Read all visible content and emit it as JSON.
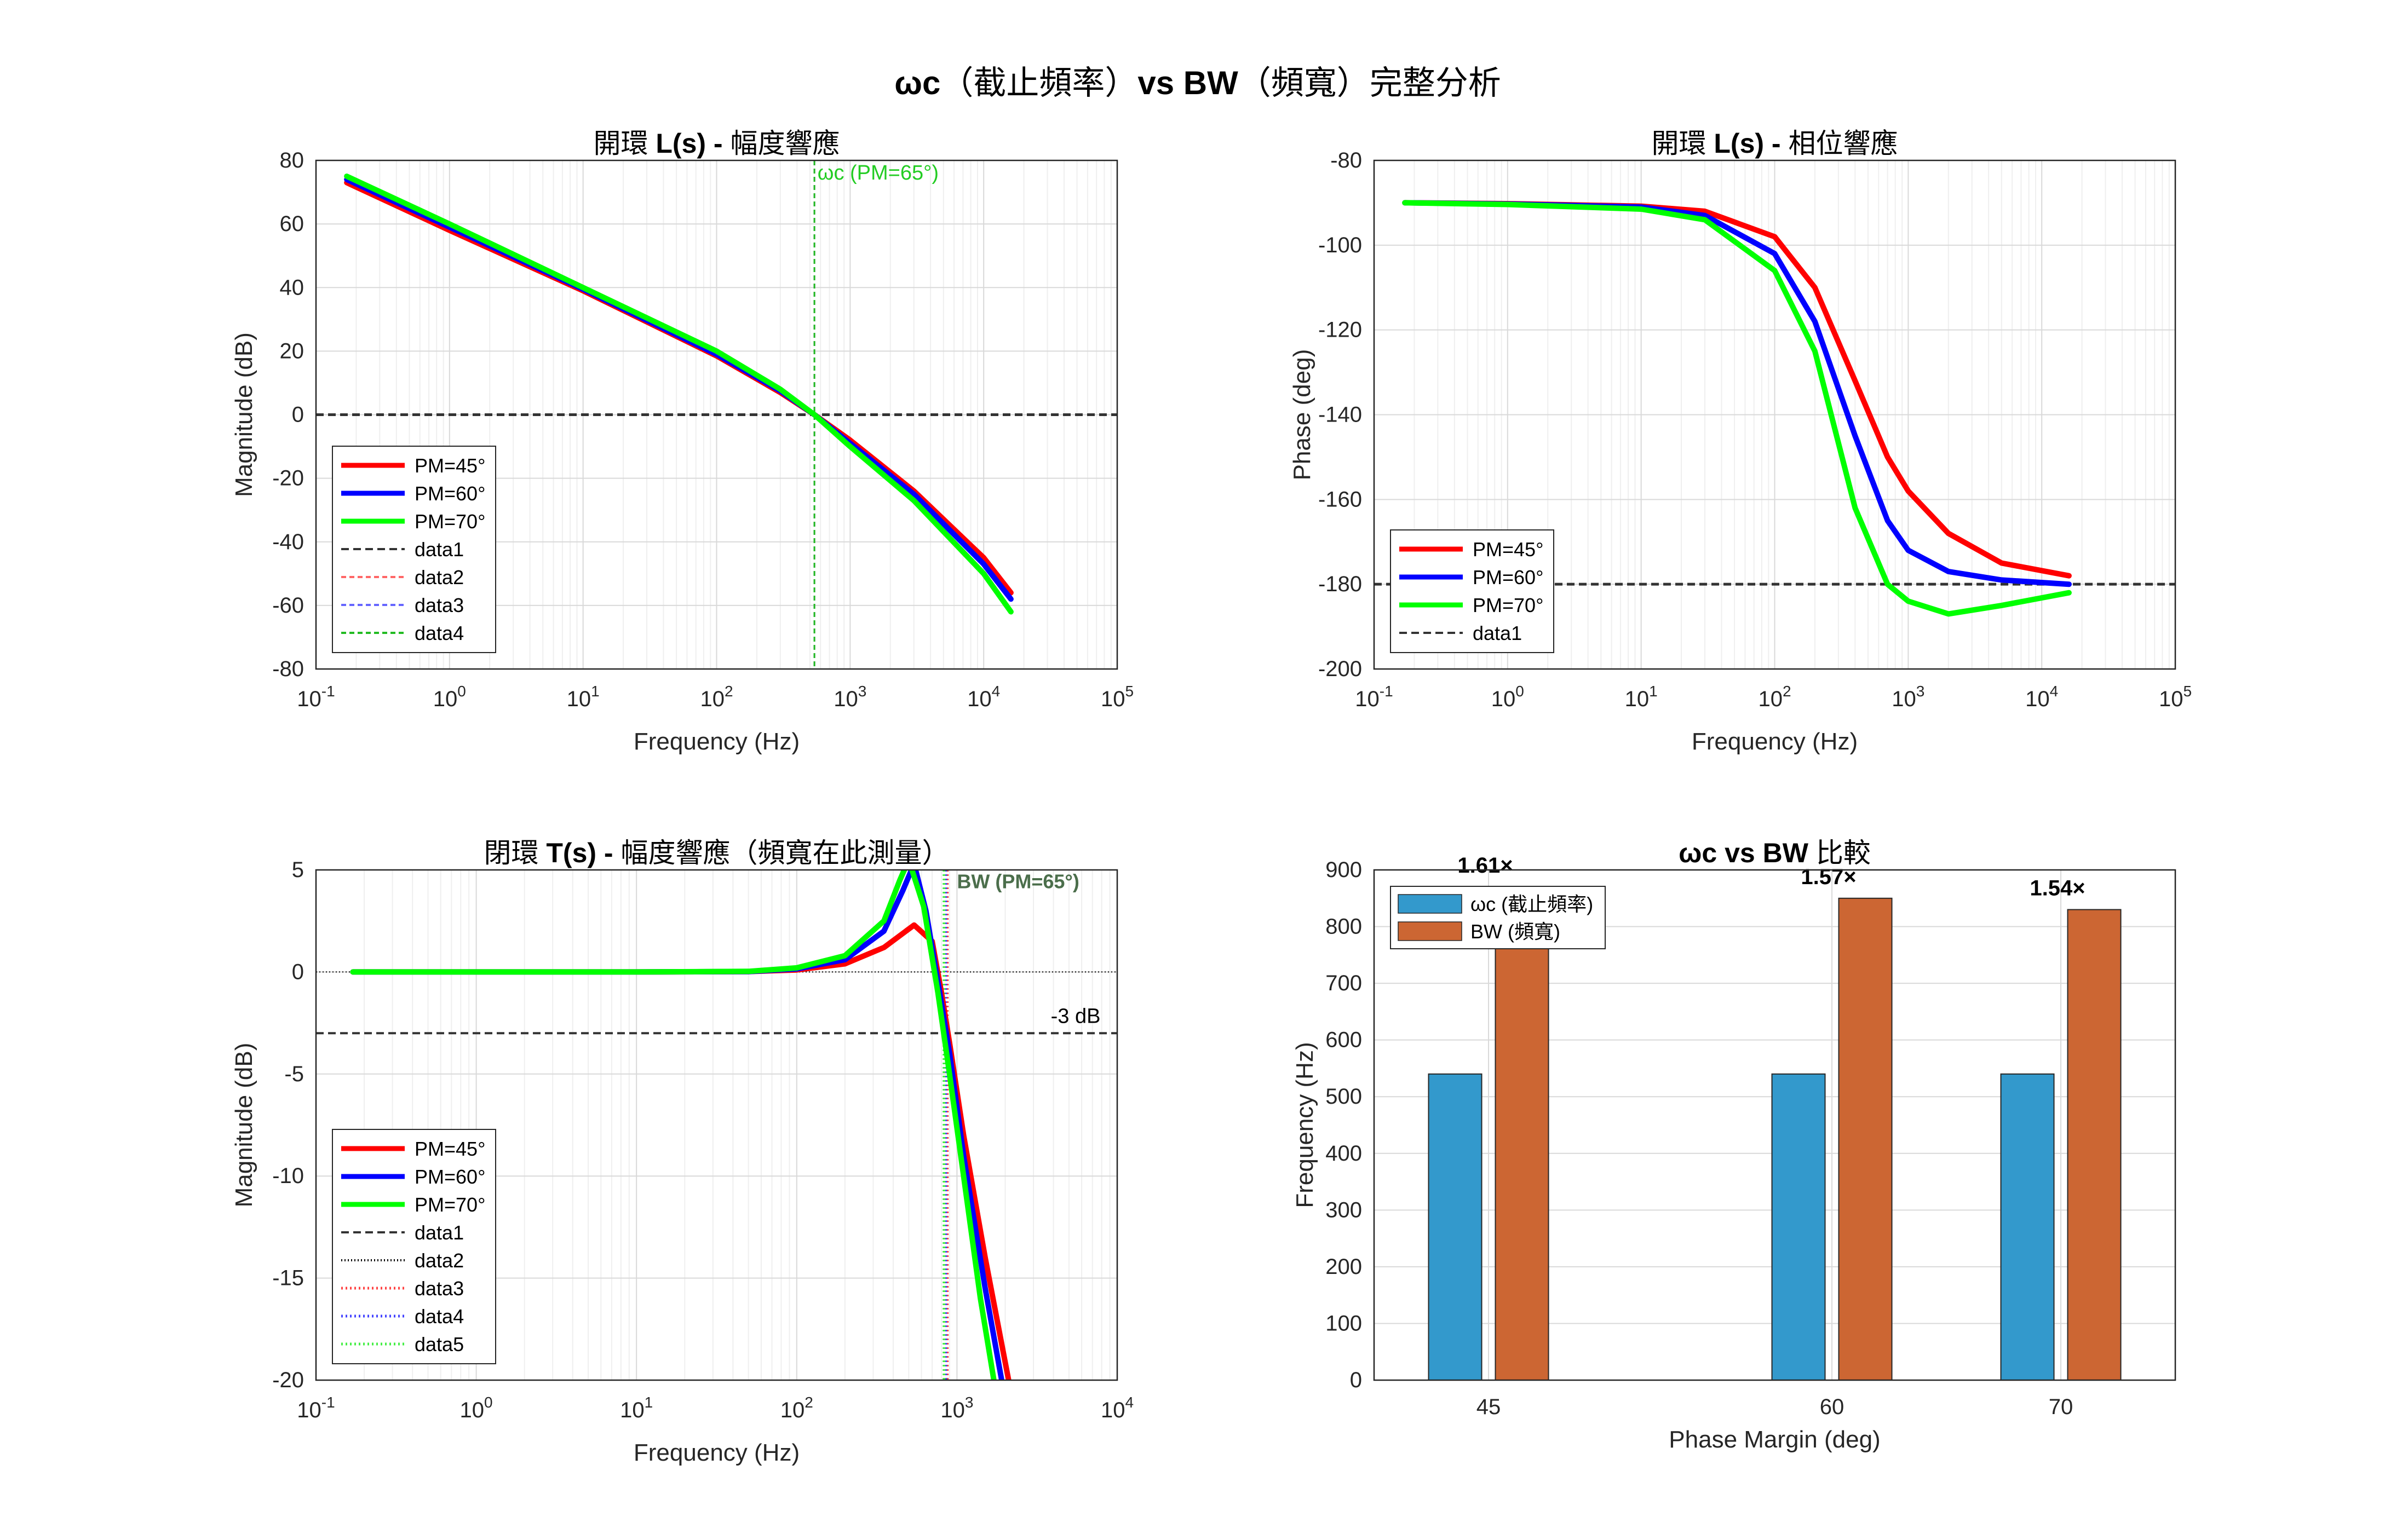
{
  "figure": {
    "suptitle_html": "<b>ωc</b>（截止頻率）<b>vs BW</b>（頻寬）完整分析"
  },
  "chart_data": [
    {
      "id": "loop-mag",
      "type": "line",
      "title": "開環 L(s) - 幅度響應",
      "title_html": "開環 <b>L(s) -</b> 幅度響應",
      "xlabel": "Frequency (Hz)",
      "ylabel": "Magnitude (dB)",
      "xscale": "log",
      "xlim": [
        0.1,
        100000
      ],
      "ylim": [
        -80,
        80
      ],
      "yticks": [
        -80,
        -60,
        -40,
        -20,
        0,
        20,
        40,
        60,
        80
      ],
      "xticks": [
        0.1,
        1,
        10,
        100,
        1000,
        10000,
        100000
      ],
      "grid": true,
      "legend_position": "bottom-left",
      "legend": [
        "PM=45°",
        "PM=60°",
        "PM=70°",
        "data1",
        "data2",
        "data3",
        "data4"
      ],
      "series": [
        {
          "name": "PM=45°",
          "color": "#ff0000",
          "points": [
            [
              0.17,
              73
            ],
            [
              1,
              58
            ],
            [
              10,
              39
            ],
            [
              100,
              18.5
            ],
            [
              300,
              7
            ],
            [
              540,
              0
            ],
            [
              1000,
              -8
            ],
            [
              3000,
              -24
            ],
            [
              10000,
              -45
            ],
            [
              16000,
              -56
            ]
          ]
        },
        {
          "name": "PM=60°",
          "color": "#0000ff",
          "points": [
            [
              0.17,
              74
            ],
            [
              1,
              59
            ],
            [
              10,
              39.5
            ],
            [
              100,
              19
            ],
            [
              300,
              7.5
            ],
            [
              540,
              0
            ],
            [
              1000,
              -9
            ],
            [
              3000,
              -25
            ],
            [
              10000,
              -47
            ],
            [
              16000,
              -58
            ]
          ]
        },
        {
          "name": "PM=70°",
          "color": "#00ff00",
          "points": [
            [
              0.17,
              75
            ],
            [
              1,
              60
            ],
            [
              10,
              40
            ],
            [
              100,
              20
            ],
            [
              300,
              8
            ],
            [
              540,
              0
            ],
            [
              1000,
              -10
            ],
            [
              3000,
              -27
            ],
            [
              10000,
              -50
            ],
            [
              16000,
              -62
            ]
          ]
        }
      ],
      "hlines": [
        {
          "name": "data1",
          "y": 0,
          "color": "#333333",
          "dash": "14,8"
        }
      ],
      "vlines": [
        {
          "name": "data2",
          "x": 540,
          "color": "#ff6666",
          "dash": "9,6"
        },
        {
          "name": "data3",
          "x": 540,
          "color": "#6666ff",
          "dash": "9,6"
        },
        {
          "name": "data4",
          "x": 540,
          "color": "#22bb22",
          "dash": "9,6"
        }
      ],
      "annotations": [
        {
          "text": "ωc (PM=65°)",
          "x": 570,
          "y": 74,
          "color": "#22cc22",
          "size": 38
        }
      ]
    },
    {
      "id": "loop-phase",
      "type": "line",
      "title": "開環 L(s) - 相位響應",
      "title_html": "開環 <b>L(s) -</b> 相位響應",
      "xlabel": "Frequency (Hz)",
      "ylabel": "Phase (deg)",
      "xscale": "log",
      "xlim": [
        0.1,
        100000
      ],
      "ylim": [
        -200,
        -80
      ],
      "yticks": [
        -200,
        -180,
        -160,
        -140,
        -120,
        -100,
        -80
      ],
      "xticks": [
        0.1,
        1,
        10,
        100,
        1000,
        10000,
        100000
      ],
      "grid": true,
      "legend_position": "bottom-left",
      "legend": [
        "PM=45°",
        "PM=60°",
        "PM=70°",
        "data1"
      ],
      "series": [
        {
          "name": "PM=45°",
          "color": "#ff0000",
          "points": [
            [
              0.17,
              -90
            ],
            [
              1,
              -90.2
            ],
            [
              10,
              -90.8
            ],
            [
              30,
              -92
            ],
            [
              100,
              -98
            ],
            [
              200,
              -110
            ],
            [
              400,
              -132
            ],
            [
              700,
              -150
            ],
            [
              1000,
              -158
            ],
            [
              2000,
              -168
            ],
            [
              5000,
              -175
            ],
            [
              16000,
              -178
            ]
          ]
        },
        {
          "name": "PM=60°",
          "color": "#0000ff",
          "points": [
            [
              0.17,
              -90
            ],
            [
              1,
              -90.3
            ],
            [
              10,
              -91
            ],
            [
              30,
              -93
            ],
            [
              100,
              -102
            ],
            [
              200,
              -118
            ],
            [
              400,
              -145
            ],
            [
              700,
              -165
            ],
            [
              1000,
              -172
            ],
            [
              2000,
              -177
            ],
            [
              5000,
              -179
            ],
            [
              16000,
              -180
            ]
          ]
        },
        {
          "name": "PM=70°",
          "color": "#00ff00",
          "points": [
            [
              0.17,
              -90
            ],
            [
              1,
              -90.4
            ],
            [
              10,
              -91.5
            ],
            [
              30,
              -94
            ],
            [
              100,
              -106
            ],
            [
              200,
              -125
            ],
            [
              400,
              -162
            ],
            [
              700,
              -180
            ],
            [
              1000,
              -184
            ],
            [
              2000,
              -187
            ],
            [
              5000,
              -185
            ],
            [
              16000,
              -182
            ]
          ]
        }
      ],
      "hlines": [
        {
          "name": "data1",
          "y": -180,
          "color": "#333333",
          "dash": "14,8"
        }
      ],
      "vlines": [],
      "annotations": []
    },
    {
      "id": "closed-mag",
      "type": "line",
      "title": "閉環 T(s) - 幅度響應（頻寬在此測量）",
      "title_html": "閉環 <b>T(s) -</b> 幅度響應（頻寬在此測量）",
      "xlabel": "Frequency (Hz)",
      "ylabel": "Magnitude (dB)",
      "xscale": "log",
      "xlim": [
        0.1,
        10000
      ],
      "ylim": [
        -20,
        5
      ],
      "yticks": [
        -20,
        -15,
        -10,
        -5,
        0,
        5
      ],
      "xticks": [
        0.1,
        1,
        10,
        100,
        1000,
        10000
      ],
      "grid": true,
      "legend_position": "bottom-left",
      "legend": [
        "PM=45°",
        "PM=60°",
        "PM=70°",
        "data1",
        "data2",
        "data3",
        "data4",
        "data5"
      ],
      "series": [
        {
          "name": "PM=45°",
          "color": "#ff0000",
          "points": [
            [
              0.17,
              0
            ],
            [
              10,
              0
            ],
            [
              50,
              0.02
            ],
            [
              100,
              0.1
            ],
            [
              200,
              0.4
            ],
            [
              350,
              1.2
            ],
            [
              540,
              2.3
            ],
            [
              700,
              1.5
            ],
            [
              800,
              -1
            ],
            [
              900,
              -3.5
            ],
            [
              1100,
              -8
            ],
            [
              1500,
              -14
            ],
            [
              2100,
              -20
            ]
          ]
        },
        {
          "name": "PM=60°",
          "color": "#0000ff",
          "points": [
            [
              0.17,
              0
            ],
            [
              10,
              0
            ],
            [
              50,
              0.02
            ],
            [
              100,
              0.15
            ],
            [
              200,
              0.6
            ],
            [
              350,
              2
            ],
            [
              460,
              4
            ],
            [
              540,
              5.3
            ],
            [
              640,
              3
            ],
            [
              780,
              -1
            ],
            [
              900,
              -4
            ],
            [
              1100,
              -9
            ],
            [
              1500,
              -15.5
            ],
            [
              1900,
              -20
            ]
          ]
        },
        {
          "name": "PM=70°",
          "color": "#00ff00",
          "points": [
            [
              0.17,
              0
            ],
            [
              10,
              0
            ],
            [
              50,
              0.03
            ],
            [
              100,
              0.2
            ],
            [
              200,
              0.8
            ],
            [
              350,
              2.5
            ],
            [
              440,
              4.5
            ],
            [
              500,
              5.5
            ],
            [
              620,
              3.2
            ],
            [
              760,
              -1
            ],
            [
              880,
              -4.5
            ],
            [
              1100,
              -10
            ],
            [
              1400,
              -16
            ],
            [
              1700,
              -20
            ]
          ]
        }
      ],
      "hlines": [
        {
          "name": "data1",
          "y": -3,
          "color": "#333333",
          "dash": "14,8",
          "width": 4
        },
        {
          "name": "data2",
          "y": 0,
          "color": "#000000",
          "dash": "2,4",
          "width": 2
        }
      ],
      "vlines": [
        {
          "name": "data3",
          "x": 870,
          "color": "#ff4444",
          "dash": "3,5",
          "width": 5
        },
        {
          "name": "data4",
          "x": 850,
          "color": "#4444ff",
          "dash": "3,5",
          "width": 5
        },
        {
          "name": "data5",
          "x": 830,
          "color": "#44ee44",
          "dash": "3,5",
          "width": 5
        }
      ],
      "annotations": [
        {
          "text": "BW (PM=65°)",
          "x": 1000,
          "y": 4.1,
          "color": "#4b6e4b",
          "size": 36,
          "bold": true
        },
        {
          "text": "-3 dB",
          "x": 5500,
          "y": -2.5,
          "color": "#000000",
          "size": 38
        }
      ]
    },
    {
      "id": "wc-bw-compare",
      "type": "bar",
      "title": "ωc vs BW 比較",
      "title_html": "<b>ωc vs BW</b> 比較",
      "xlabel": "Phase Margin (deg)",
      "ylabel": "Frequency (Hz)",
      "categories": [
        "45",
        "60",
        "70"
      ],
      "x": [
        45,
        60,
        70
      ],
      "xlim": [
        40,
        75
      ],
      "ylim": [
        0,
        900
      ],
      "yticks": [
        0,
        100,
        200,
        300,
        400,
        500,
        600,
        700,
        800,
        900
      ],
      "grid": true,
      "legend_position": "top-left",
      "series": [
        {
          "name": "ωc (截止頻率)",
          "color": "#3399cc",
          "values": [
            540,
            540,
            540
          ]
        },
        {
          "name": "BW (頻寬)",
          "color": "#cc6633",
          "values": [
            870,
            850,
            830
          ]
        }
      ],
      "ratio_labels": [
        "1.61×",
        "1.57×",
        "1.54×"
      ]
    }
  ]
}
